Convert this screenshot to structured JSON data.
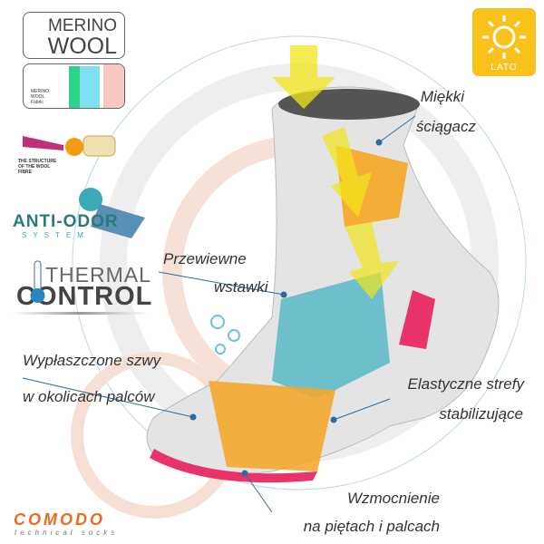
{
  "badges": {
    "merino_line1": "MERINO",
    "merino_line2": "WOOL",
    "merino_fabric": "MERINO WOOL Fabric",
    "wool_fibre": "THE STRUCTURE OF THE WOOL FIBRE",
    "anti_odor": "ANTI-ODOR",
    "anti_odor_sub": "SYSTEM",
    "thermal": "THERMAL",
    "control": "CONTROL",
    "season": "LATO"
  },
  "brand": {
    "name": "COMODO",
    "tagline": "technical socks",
    "color": "#ee6a1c"
  },
  "colors": {
    "sun": "#f8c11b",
    "accent_teal": "#2aa9b8",
    "accent_pink": "#e8336b",
    "accent_yellow": "#f2d21a",
    "accent_orange": "#f5a623"
  },
  "features": [
    {
      "line1": "Miękki",
      "line2": "ściągacz"
    },
    {
      "line1": "Przewiewne",
      "line2": "wstawki"
    },
    {
      "line1": "Wypłaszczone szwy",
      "line2": "w okolicach palców"
    },
    {
      "line1": "Elastyczne strefy",
      "line2": "stabilizujące"
    },
    {
      "line1": "Wzmocnienie",
      "line2": "na piętach i palcach"
    }
  ]
}
